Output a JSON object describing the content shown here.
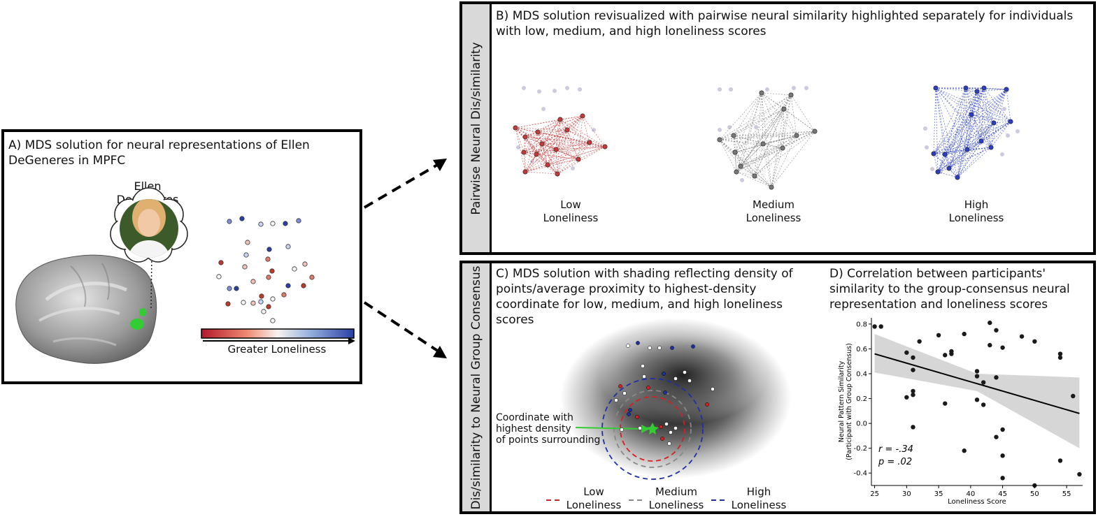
{
  "panel_a": {
    "title": "A) MDS solution for neural representations of Ellen DeGeneres in MPFC",
    "person_label": "Ellen DeGeneres",
    "colorbar_label": "Greater Loneliness",
    "colorbar_low_color": "#b2182b",
    "colorbar_high_color": "#2a3fa5"
  },
  "panel_b": {
    "title": "B) MDS solution revisualized with pairwise neural similarity highlighted separately for individuals with low, medium, and high loneliness scores",
    "sidebar": "Pairwise Neural Dis/similarity",
    "groups": [
      {
        "label_line1": "Low",
        "label_line2": "Loneliness",
        "color": "#c43a3a"
      },
      {
        "label_line1": "Medium",
        "label_line2": "Loneliness",
        "color": "#777777"
      },
      {
        "label_line1": "High",
        "label_line2": "Loneliness",
        "color": "#2b3fc0"
      }
    ]
  },
  "panel_c": {
    "title": "C) MDS solution with shading reflecting density of points/average proximity to highest-density coordinate for low, medium, and high loneliness scores",
    "sidebar": "Dis/similarity to Neural Group Consensus",
    "annotation_line1": "Coordinate with",
    "annotation_line2": "highest density",
    "annotation_line3": "of points surrounding",
    "legend": [
      {
        "label_line1": "Low",
        "label_line2": "Loneliness",
        "color": "#d42020"
      },
      {
        "label_line1": "Medium",
        "label_line2": "Loneliness",
        "color": "#888888"
      },
      {
        "label_line1": "High",
        "label_line2": "Loneliness",
        "color": "#1f2fa8"
      }
    ]
  },
  "panel_d": {
    "title": "D) Correlation between participants' similarity to the group-consensus neural representation and loneliness scores",
    "stat_r": "r = -.34",
    "stat_p": "p = .02"
  },
  "chart_data": {
    "type": "scatter",
    "title": "",
    "xlabel": "Loneliness Score",
    "ylabel_line1": "Neural Pattern Similarity",
    "ylabel_line2": "(Participant with Group Consensus)",
    "xlim": [
      24.5,
      57.5
    ],
    "ylim": [
      -0.5,
      0.85
    ],
    "xticks": [
      "25",
      "30",
      "35",
      "40",
      "45",
      "50",
      "55"
    ],
    "yticks": [
      "-0.4",
      "-0.2",
      "0.0",
      "0.2",
      "0.4",
      "0.6",
      "0.8"
    ],
    "points": [
      [
        25,
        0.78
      ],
      [
        26,
        0.78
      ],
      [
        30,
        0.57
      ],
      [
        30,
        0.21
      ],
      [
        31,
        0.53
      ],
      [
        31,
        0.43
      ],
      [
        31,
        0.26
      ],
      [
        31,
        0.23
      ],
      [
        31,
        -0.03
      ],
      [
        32,
        0.66
      ],
      [
        35,
        0.71
      ],
      [
        36,
        0.55
      ],
      [
        36,
        0.16
      ],
      [
        37,
        0.58
      ],
      [
        37,
        0.56
      ],
      [
        39,
        0.72
      ],
      [
        39,
        -0.22
      ],
      [
        41,
        0.42
      ],
      [
        41,
        0.19
      ],
      [
        41,
        0.38
      ],
      [
        42,
        0.33
      ],
      [
        42,
        0.15
      ],
      [
        43,
        0.81
      ],
      [
        43,
        0.63
      ],
      [
        44,
        0.75
      ],
      [
        44,
        0.37
      ],
      [
        44,
        -0.11
      ],
      [
        45,
        -0.05
      ],
      [
        45,
        -0.26
      ],
      [
        45,
        -0.44
      ],
      [
        45,
        0.61
      ],
      [
        48,
        0.7
      ],
      [
        50,
        0.66
      ],
      [
        50,
        -0.5
      ],
      [
        54,
        0.56
      ],
      [
        54,
        0.53
      ],
      [
        54,
        -0.3
      ],
      [
        56,
        0.22
      ],
      [
        57,
        -0.41
      ]
    ],
    "regression": {
      "x": [
        25,
        57
      ],
      "y": [
        0.56,
        0.08
      ]
    },
    "ci_band": {
      "x": [
        25,
        41,
        57
      ],
      "upper": [
        0.72,
        0.4,
        0.37
      ],
      "lower": [
        0.41,
        0.26,
        -0.2
      ]
    },
    "grid": false,
    "legend": "none"
  }
}
